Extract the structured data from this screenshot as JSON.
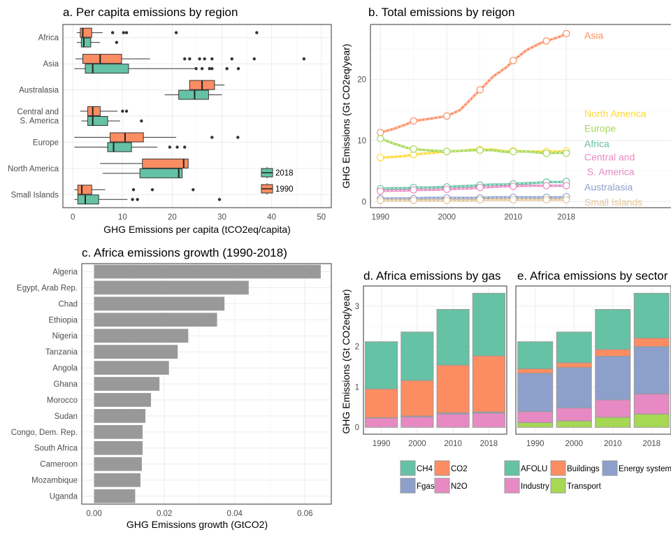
{
  "colors": {
    "c1990": "#fc8d62",
    "c2018": "#66c2a5",
    "asia": "#fc8d62",
    "north_america": "#ffd92f",
    "europe": "#a6d854",
    "africa": "#66c2a5",
    "central": "#e78ac3",
    "australasia": "#8da0cb",
    "small_islands": "#e5c494",
    "bar": "#999999",
    "ch4": "#66c2a5",
    "co2": "#fc8d62",
    "fgas": "#8da0cb",
    "n2o": "#e78ac3",
    "afolu": "#66c2a5",
    "buildings": "#fc8d62",
    "energy": "#8da0cb",
    "industry": "#e78ac3",
    "transport": "#a6d854"
  },
  "chart_data": [
    {
      "id": "a",
      "type": "box",
      "title": "a. Per capita emissions by region",
      "xlabel": "GHG Emissions per capita (tCO2eq/capita)",
      "xlim": [
        -2,
        52
      ],
      "xticks": [
        0,
        10,
        20,
        30,
        40,
        50
      ],
      "categories": [
        "Africa",
        "Asia",
        "Australasia",
        "Central and\nS. America",
        "Europe",
        "North America",
        "Small Islands"
      ],
      "category_lines": [
        [
          "Africa"
        ],
        [
          "Asia"
        ],
        [
          "Australasia"
        ],
        [
          "Central and",
          "S. America"
        ],
        [
          "Europe"
        ],
        [
          "North America"
        ],
        [
          "Small Islands"
        ]
      ],
      "legend": [
        "2018",
        "1990"
      ],
      "series": [
        {
          "name": "1990",
          "boxes": [
            {
              "cat": "Africa",
              "lo": 0.8,
              "q1": 1.5,
              "med": 2.0,
              "q3": 3.8,
              "hi": 6.0,
              "outliers": [
                8.0,
                10.2,
                10.8,
                20.8,
                37.0
              ]
            },
            {
              "cat": "Asia",
              "lo": 0.5,
              "q1": 2.0,
              "med": 5.5,
              "q3": 9.8,
              "hi": 15.5,
              "outliers": [
                22.5,
                23.5,
                25.5,
                26.5,
                28.0,
                32.0,
                36.5,
                46.5
              ]
            },
            {
              "cat": "Australasia",
              "lo": 23.5,
              "q1": 23.5,
              "med": 26.0,
              "q3": 28.5,
              "hi": 30.5,
              "outliers": []
            },
            {
              "cat": "Central and\nS. America",
              "lo": 1.5,
              "q1": 3.0,
              "med": 4.0,
              "q3": 5.5,
              "hi": 9.0,
              "outliers": [
                10.0,
                10.8
              ]
            },
            {
              "cat": "Europe",
              "lo": 0.3,
              "q1": 7.5,
              "med": 10.5,
              "q3": 14.2,
              "hi": 20.8,
              "outliers": [
                28.0,
                33.2
              ]
            },
            {
              "cat": "North America",
              "lo": 5.5,
              "q1": 14.0,
              "med": 22.3,
              "q3": 23.2,
              "hi": 23.2,
              "outliers": []
            },
            {
              "cat": "Small Islands",
              "lo": 0.3,
              "q1": 1.0,
              "med": 1.8,
              "q3": 3.8,
              "hi": 6.5,
              "outliers": [
                12.2,
                16.0,
                24.2
              ]
            }
          ]
        },
        {
          "name": "2018",
          "boxes": [
            {
              "cat": "Africa",
              "lo": 0.8,
              "q1": 1.7,
              "med": 2.2,
              "q3": 3.6,
              "hi": 5.5,
              "outliers": [
                8.8
              ]
            },
            {
              "cat": "Asia",
              "lo": 0.3,
              "q1": 2.5,
              "med": 4.0,
              "q3": 11.2,
              "hi": 25.0,
              "outliers": [
                24.8,
                26.0,
                27.5,
                28.0,
                31.0,
                33.3
              ]
            },
            {
              "cat": "Australasia",
              "lo": 18.5,
              "q1": 21.3,
              "med": 24.5,
              "q3": 27.3,
              "hi": 30.0,
              "outliers": []
            },
            {
              "cat": "Central and\nS. America",
              "lo": 1.7,
              "q1": 3.0,
              "med": 4.0,
              "q3": 7.0,
              "hi": 9.5,
              "outliers": [
                13.8
              ]
            },
            {
              "cat": "Europe",
              "lo": 0.3,
              "q1": 7.0,
              "med": 8.2,
              "q3": 11.8,
              "hi": 17.0,
              "outliers": [
                19.5,
                21.0,
                22.5
              ]
            },
            {
              "cat": "North America",
              "lo": 6.0,
              "q1": 13.5,
              "med": 21.3,
              "q3": 22.0,
              "hi": 22.0,
              "outliers": []
            },
            {
              "cat": "Small Islands",
              "lo": 0.3,
              "q1": 1.0,
              "med": 2.5,
              "q3": 5.2,
              "hi": 11.0,
              "outliers": [
                12.0,
                13.0,
                29.5
              ]
            }
          ]
        }
      ]
    },
    {
      "id": "b",
      "type": "line",
      "title": "b. Total emissions by reigon",
      "ylabel": "GHG Emissions (Gt CO2eq/year)",
      "xlim": [
        1988.5,
        2020.5
      ],
      "ylim": [
        -1.0,
        29.0
      ],
      "xticks": [
        1990,
        2000,
        2010,
        2018
      ],
      "yticks": [
        0,
        10,
        20
      ],
      "x": [
        1990,
        1992,
        1994,
        1995,
        1997,
        2000,
        2002,
        2004,
        2005,
        2007,
        2009,
        2010,
        2012,
        2014,
        2015,
        2017,
        2018
      ],
      "markers_x": [
        1990,
        1995,
        2000,
        2005,
        2010,
        2015,
        2018
      ],
      "labels": [
        {
          "text": "Asia",
          "y": 27.2
        },
        {
          "text": "North America",
          "y": 14.4
        },
        {
          "text": "Europe",
          "y": 12.0
        },
        {
          "text": "Africa",
          "y": 9.5
        },
        {
          "text": "Central and",
          "y": 7.3
        },
        {
          "text": " S. America",
          "y": 4.9
        },
        {
          "text": "Australasia",
          "y": 2.4
        },
        {
          "text": "Small Islands",
          "y": -0.1
        }
      ],
      "series": [
        {
          "name": "Asia",
          "values": [
            11.3,
            11.9,
            12.7,
            13.2,
            13.5,
            14.0,
            15.0,
            17.2,
            18.3,
            20.5,
            22.0,
            23.1,
            24.8,
            25.9,
            26.3,
            27.0,
            27.5
          ]
        },
        {
          "name": "North America",
          "values": [
            7.2,
            7.3,
            7.5,
            7.7,
            7.9,
            8.2,
            8.3,
            8.5,
            8.5,
            8.5,
            8.2,
            8.3,
            8.2,
            8.2,
            8.2,
            8.2,
            8.3
          ]
        },
        {
          "name": "Europe",
          "values": [
            10.3,
            9.5,
            8.8,
            8.6,
            8.4,
            8.2,
            8.3,
            8.4,
            8.4,
            8.4,
            8.1,
            8.2,
            8.2,
            8.0,
            7.9,
            8.0,
            7.9
          ]
        },
        {
          "name": "Africa",
          "values": [
            2.1,
            2.2,
            2.2,
            2.3,
            2.3,
            2.4,
            2.5,
            2.6,
            2.7,
            2.8,
            2.8,
            2.9,
            3.0,
            3.1,
            3.2,
            3.2,
            3.3
          ]
        },
        {
          "name": "Central and\n S. America",
          "values": [
            1.7,
            1.8,
            1.8,
            1.9,
            1.9,
            2.0,
            2.1,
            2.2,
            2.3,
            2.4,
            2.5,
            2.5,
            2.6,
            2.6,
            2.6,
            2.6,
            2.6
          ]
        },
        {
          "name": "Australasia",
          "values": [
            0.5,
            0.5,
            0.5,
            0.5,
            0.6,
            0.6,
            0.6,
            0.6,
            0.6,
            0.7,
            0.7,
            0.7,
            0.7,
            0.7,
            0.7,
            0.7,
            0.8
          ]
        },
        {
          "name": "Small Islands",
          "values": [
            0.2,
            0.2,
            0.2,
            0.2,
            0.2,
            0.2,
            0.2,
            0.2,
            0.3,
            0.3,
            0.3,
            0.3,
            0.3,
            0.3,
            0.3,
            0.3,
            0.3
          ]
        }
      ]
    },
    {
      "id": "c",
      "type": "bar",
      "title": "c. Africa emissions growth (1990-2018)",
      "xlabel": "GHG Emissions growth (GtCO2)",
      "xlim": [
        -0.0035,
        0.0675
      ],
      "xticks": [
        0.0,
        0.02,
        0.04,
        0.06
      ],
      "xtick_labels": [
        "0.00",
        "0.02",
        "0.04",
        "0.06"
      ],
      "categories": [
        "Algeria",
        "Egypt, Arab Rep.",
        "Chad",
        "Ethiopia",
        "Nigeria",
        "Tanzania",
        "Angola",
        "Ghana",
        "Morocco",
        "Sudan",
        "Congo, Dem. Rep.",
        "South Africa",
        "Cameroon",
        "Mozambique",
        "Uganda"
      ],
      "values": [
        0.0645,
        0.044,
        0.0371,
        0.035,
        0.0268,
        0.0238,
        0.0213,
        0.0186,
        0.0162,
        0.0146,
        0.0138,
        0.0138,
        0.0136,
        0.0132,
        0.0117
      ]
    },
    {
      "id": "d",
      "type": "stacked-bar",
      "title": "d. Africa emissions by gas",
      "ylabel": "GHG Emissions (Gt CO2eq/year)",
      "ylim": [
        -0.17,
        3.5
      ],
      "yticks": [
        0,
        1,
        2,
        3
      ],
      "categories": [
        "1990",
        "2000",
        "2010",
        "2018"
      ],
      "series": [
        {
          "name": "N2O",
          "values": [
            0.23,
            0.26,
            0.33,
            0.35
          ]
        },
        {
          "name": "Fgas",
          "values": [
            0.01,
            0.02,
            0.03,
            0.03
          ]
        },
        {
          "name": "CO2",
          "values": [
            0.71,
            0.88,
            1.18,
            1.39
          ]
        },
        {
          "name": "CH4",
          "values": [
            1.17,
            1.2,
            1.38,
            1.55
          ]
        }
      ],
      "legend": [
        "CH4",
        "CO2",
        "Fgas",
        "N2O"
      ]
    },
    {
      "id": "e",
      "type": "stacked-bar",
      "title": "e. Africa emissions by sector",
      "ylim": [
        -0.17,
        3.5
      ],
      "categories": [
        "1990",
        "2000",
        "2010",
        "2018"
      ],
      "series": [
        {
          "name": "Transport",
          "values": [
            0.12,
            0.16,
            0.25,
            0.33
          ]
        },
        {
          "name": "Industry",
          "values": [
            0.27,
            0.32,
            0.43,
            0.5
          ]
        },
        {
          "name": "Energy systems",
          "values": [
            0.95,
            1.0,
            1.08,
            1.17
          ]
        },
        {
          "name": "Buildings",
          "values": [
            0.11,
            0.12,
            0.17,
            0.21
          ]
        },
        {
          "name": "AFOLU",
          "values": [
            0.67,
            0.76,
            0.99,
            1.11
          ]
        }
      ],
      "legend": [
        "AFOLU",
        "Buildings",
        "Energy systems",
        "Industry",
        "Transport"
      ]
    }
  ]
}
